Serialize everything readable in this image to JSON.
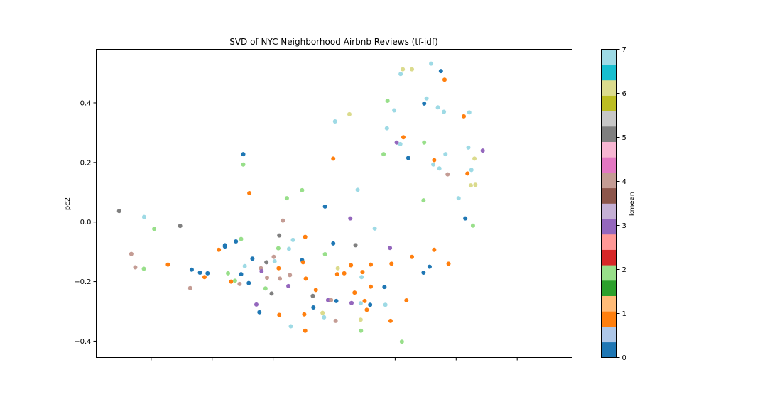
{
  "chart_data": {
    "type": "scatter",
    "title": "SVD of NYC Neighborhood Airbnb Reviews (tf-idf)",
    "xlabel": "",
    "ylabel": "pc2",
    "xlim": [
      -0.78,
      0.78
    ],
    "ylim": [
      -0.455,
      0.58
    ],
    "yticks": [
      -0.4,
      -0.2,
      0.0,
      0.2,
      0.4
    ],
    "ytick_labels": [
      "−0.4",
      "−0.2",
      "0.0",
      "0.2",
      "0.4"
    ],
    "xticks": [
      -0.6,
      -0.4,
      -0.2,
      0.0,
      0.2,
      0.4,
      0.6
    ],
    "grid": false,
    "colorbar": {
      "label": "kmean",
      "min": 0,
      "max": 7,
      "ticks": [
        0,
        1,
        2,
        3,
        4,
        5,
        6,
        7
      ],
      "palette": [
        "#1f77b4",
        "#aec7e8",
        "#ff7f0e",
        "#ffbb78",
        "#2ca02c",
        "#98df8a",
        "#d62728",
        "#ff9896",
        "#9467bd",
        "#c5b0d5",
        "#8c564b",
        "#c49c94",
        "#e377c2",
        "#f7b6d2",
        "#7f7f7f",
        "#c7c7c7",
        "#bcbd22",
        "#dbdb8d",
        "#17becf",
        "#9edae5"
      ]
    },
    "points": [
      {
        "x": -0.705,
        "y": 0.037,
        "kmean": 5.0
      },
      {
        "x": -0.623,
        "y": 0.017,
        "kmean": 7.0
      },
      {
        "x": -0.59,
        "y": -0.023,
        "kmean": 2.0
      },
      {
        "x": -0.505,
        "y": -0.013,
        "kmean": 5.0
      },
      {
        "x": -0.665,
        "y": -0.107,
        "kmean": 4.0
      },
      {
        "x": -0.652,
        "y": -0.152,
        "kmean": 4.0
      },
      {
        "x": -0.624,
        "y": -0.157,
        "kmean": 2.0
      },
      {
        "x": -0.545,
        "y": -0.143,
        "kmean": 1.0
      },
      {
        "x": -0.472,
        "y": -0.222,
        "kmean": 4.0
      },
      {
        "x": -0.467,
        "y": -0.16,
        "kmean": 0.0
      },
      {
        "x": -0.44,
        "y": -0.17,
        "kmean": 0.0
      },
      {
        "x": -0.425,
        "y": -0.185,
        "kmean": 1.0
      },
      {
        "x": -0.415,
        "y": -0.172,
        "kmean": 0.0
      },
      {
        "x": -0.378,
        "y": -0.093,
        "kmean": 1.0
      },
      {
        "x": -0.358,
        "y": -0.082,
        "kmean": 0.0
      },
      {
        "x": -0.358,
        "y": -0.078,
        "kmean": 0.0
      },
      {
        "x": -0.348,
        "y": -0.172,
        "kmean": 2.0
      },
      {
        "x": -0.338,
        "y": -0.2,
        "kmean": 1.0
      },
      {
        "x": -0.325,
        "y": -0.197,
        "kmean": 2.0
      },
      {
        "x": -0.322,
        "y": -0.065,
        "kmean": 0.0
      },
      {
        "x": -0.31,
        "y": -0.208,
        "kmean": 4.0
      },
      {
        "x": -0.305,
        "y": -0.175,
        "kmean": 0.0
      },
      {
        "x": -0.305,
        "y": -0.057,
        "kmean": 2.0
      },
      {
        "x": -0.298,
        "y": 0.228,
        "kmean": 0.0
      },
      {
        "x": -0.298,
        "y": 0.193,
        "kmean": 2.0
      },
      {
        "x": -0.293,
        "y": -0.148,
        "kmean": 7.0
      },
      {
        "x": -0.278,
        "y": 0.097,
        "kmean": 1.0
      },
      {
        "x": -0.28,
        "y": -0.205,
        "kmean": 0.0
      },
      {
        "x": -0.268,
        "y": -0.123,
        "kmean": 0.0
      },
      {
        "x": -0.255,
        "y": -0.277,
        "kmean": 3.0
      },
      {
        "x": -0.245,
        "y": -0.303,
        "kmean": 0.0
      },
      {
        "x": -0.24,
        "y": -0.155,
        "kmean": 4.0
      },
      {
        "x": -0.238,
        "y": -0.165,
        "kmean": 3.0
      },
      {
        "x": -0.225,
        "y": -0.223,
        "kmean": 2.0
      },
      {
        "x": -0.222,
        "y": -0.135,
        "kmean": 5.0
      },
      {
        "x": -0.22,
        "y": -0.187,
        "kmean": 4.0
      },
      {
        "x": -0.205,
        "y": -0.24,
        "kmean": 5.0
      },
      {
        "x": -0.198,
        "y": -0.117,
        "kmean": 4.0
      },
      {
        "x": -0.195,
        "y": -0.132,
        "kmean": 7.0
      },
      {
        "x": -0.183,
        "y": -0.088,
        "kmean": 2.0
      },
      {
        "x": -0.182,
        "y": -0.155,
        "kmean": 1.0
      },
      {
        "x": -0.18,
        "y": -0.312,
        "kmean": 1.0
      },
      {
        "x": -0.18,
        "y": -0.045,
        "kmean": 5.0
      },
      {
        "x": -0.178,
        "y": -0.19,
        "kmean": 4.0
      },
      {
        "x": -0.168,
        "y": 0.005,
        "kmean": 4.0
      },
      {
        "x": -0.155,
        "y": 0.08,
        "kmean": 2.0
      },
      {
        "x": -0.15,
        "y": -0.215,
        "kmean": 3.0
      },
      {
        "x": -0.148,
        "y": -0.09,
        "kmean": 7.0
      },
      {
        "x": -0.145,
        "y": -0.178,
        "kmean": 4.0
      },
      {
        "x": -0.142,
        "y": -0.35,
        "kmean": 7.0
      },
      {
        "x": -0.135,
        "y": -0.06,
        "kmean": 7.0
      },
      {
        "x": -0.105,
        "y": 0.107,
        "kmean": 2.0
      },
      {
        "x": -0.105,
        "y": -0.128,
        "kmean": 0.0
      },
      {
        "x": -0.102,
        "y": -0.135,
        "kmean": 1.0
      },
      {
        "x": -0.098,
        "y": -0.31,
        "kmean": 1.0
      },
      {
        "x": -0.095,
        "y": -0.365,
        "kmean": 1.0
      },
      {
        "x": -0.095,
        "y": -0.05,
        "kmean": 1.0
      },
      {
        "x": -0.093,
        "y": -0.19,
        "kmean": 1.0
      },
      {
        "x": -0.07,
        "y": -0.248,
        "kmean": 5.0
      },
      {
        "x": -0.068,
        "y": -0.287,
        "kmean": 0.0
      },
      {
        "x": -0.06,
        "y": -0.228,
        "kmean": 1.0
      },
      {
        "x": -0.038,
        "y": -0.305,
        "kmean": 6.0
      },
      {
        "x": -0.033,
        "y": -0.32,
        "kmean": 7.0
      },
      {
        "x": -0.03,
        "y": 0.052,
        "kmean": 0.0
      },
      {
        "x": -0.03,
        "y": -0.108,
        "kmean": 2.0
      },
      {
        "x": -0.02,
        "y": -0.262,
        "kmean": 3.0
      },
      {
        "x": -0.01,
        "y": -0.262,
        "kmean": 4.0
      },
      {
        "x": -0.003,
        "y": 0.213,
        "kmean": 1.0
      },
      {
        "x": -0.003,
        "y": -0.072,
        "kmean": 0.0
      },
      {
        "x": 0.003,
        "y": 0.338,
        "kmean": 7.0
      },
      {
        "x": 0.005,
        "y": -0.332,
        "kmean": 4.0
      },
      {
        "x": 0.007,
        "y": -0.265,
        "kmean": 0.0
      },
      {
        "x": 0.01,
        "y": -0.175,
        "kmean": 1.0
      },
      {
        "x": 0.012,
        "y": -0.155,
        "kmean": 6.0
      },
      {
        "x": 0.033,
        "y": -0.172,
        "kmean": 1.0
      },
      {
        "x": 0.05,
        "y": 0.362,
        "kmean": 6.0
      },
      {
        "x": 0.053,
        "y": 0.012,
        "kmean": 3.0
      },
      {
        "x": 0.055,
        "y": -0.145,
        "kmean": 1.0
      },
      {
        "x": 0.057,
        "y": -0.272,
        "kmean": 3.0
      },
      {
        "x": 0.067,
        "y": -0.237,
        "kmean": 1.0
      },
      {
        "x": 0.07,
        "y": -0.078,
        "kmean": 5.0
      },
      {
        "x": 0.077,
        "y": 0.108,
        "kmean": 7.0
      },
      {
        "x": 0.087,
        "y": -0.273,
        "kmean": 7.0
      },
      {
        "x": 0.087,
        "y": -0.328,
        "kmean": 6.0
      },
      {
        "x": 0.088,
        "y": -0.365,
        "kmean": 2.0
      },
      {
        "x": 0.09,
        "y": -0.185,
        "kmean": 7.0
      },
      {
        "x": 0.093,
        "y": -0.168,
        "kmean": 1.0
      },
      {
        "x": 0.1,
        "y": -0.265,
        "kmean": 1.0
      },
      {
        "x": 0.107,
        "y": -0.295,
        "kmean": 1.0
      },
      {
        "x": 0.118,
        "y": -0.278,
        "kmean": 0.0
      },
      {
        "x": 0.12,
        "y": -0.217,
        "kmean": 1.0
      },
      {
        "x": 0.12,
        "y": -0.143,
        "kmean": 1.0
      },
      {
        "x": 0.133,
        "y": -0.022,
        "kmean": 7.0
      },
      {
        "x": 0.162,
        "y": 0.228,
        "kmean": 2.0
      },
      {
        "x": 0.165,
        "y": -0.218,
        "kmean": 0.0
      },
      {
        "x": 0.168,
        "y": -0.278,
        "kmean": 7.0
      },
      {
        "x": 0.173,
        "y": 0.315,
        "kmean": 7.0
      },
      {
        "x": 0.175,
        "y": 0.407,
        "kmean": 2.0
      },
      {
        "x": 0.183,
        "y": -0.087,
        "kmean": 3.0
      },
      {
        "x": 0.185,
        "y": -0.332,
        "kmean": 1.0
      },
      {
        "x": 0.188,
        "y": -0.14,
        "kmean": 1.0
      },
      {
        "x": 0.197,
        "y": 0.375,
        "kmean": 7.0
      },
      {
        "x": 0.205,
        "y": 0.267,
        "kmean": 3.0
      },
      {
        "x": 0.217,
        "y": 0.262,
        "kmean": 7.0
      },
      {
        "x": 0.218,
        "y": 0.497,
        "kmean": 7.0
      },
      {
        "x": 0.222,
        "y": -0.402,
        "kmean": 2.0
      },
      {
        "x": 0.225,
        "y": 0.513,
        "kmean": 6.0
      },
      {
        "x": 0.227,
        "y": 0.285,
        "kmean": 1.0
      },
      {
        "x": 0.237,
        "y": -0.263,
        "kmean": 1.0
      },
      {
        "x": 0.243,
        "y": 0.215,
        "kmean": 0.0
      },
      {
        "x": 0.255,
        "y": 0.513,
        "kmean": 6.0
      },
      {
        "x": 0.255,
        "y": -0.117,
        "kmean": 1.0
      },
      {
        "x": 0.293,
        "y": -0.17,
        "kmean": 0.0
      },
      {
        "x": 0.293,
        "y": 0.073,
        "kmean": 2.0
      },
      {
        "x": 0.295,
        "y": 0.267,
        "kmean": 2.0
      },
      {
        "x": 0.295,
        "y": 0.398,
        "kmean": 0.0
      },
      {
        "x": 0.303,
        "y": 0.415,
        "kmean": 7.0
      },
      {
        "x": 0.313,
        "y": -0.15,
        "kmean": 0.0
      },
      {
        "x": 0.318,
        "y": 0.532,
        "kmean": 7.0
      },
      {
        "x": 0.325,
        "y": 0.193,
        "kmean": 7.0
      },
      {
        "x": 0.328,
        "y": 0.208,
        "kmean": 1.0
      },
      {
        "x": 0.328,
        "y": -0.093,
        "kmean": 1.0
      },
      {
        "x": 0.34,
        "y": 0.385,
        "kmean": 7.0
      },
      {
        "x": 0.345,
        "y": 0.18,
        "kmean": 7.0
      },
      {
        "x": 0.35,
        "y": 0.507,
        "kmean": 0.0
      },
      {
        "x": 0.36,
        "y": 0.37,
        "kmean": 7.0
      },
      {
        "x": 0.362,
        "y": 0.478,
        "kmean": 1.0
      },
      {
        "x": 0.365,
        "y": 0.228,
        "kmean": 7.0
      },
      {
        "x": 0.372,
        "y": 0.16,
        "kmean": 4.0
      },
      {
        "x": 0.375,
        "y": -0.14,
        "kmean": 1.0
      },
      {
        "x": 0.408,
        "y": 0.08,
        "kmean": 7.0
      },
      {
        "x": 0.425,
        "y": 0.355,
        "kmean": 1.0
      },
      {
        "x": 0.43,
        "y": 0.012,
        "kmean": 0.0
      },
      {
        "x": 0.437,
        "y": 0.163,
        "kmean": 1.0
      },
      {
        "x": 0.44,
        "y": 0.25,
        "kmean": 7.0
      },
      {
        "x": 0.443,
        "y": 0.368,
        "kmean": 7.0
      },
      {
        "x": 0.448,
        "y": 0.123,
        "kmean": 6.0
      },
      {
        "x": 0.45,
        "y": 0.175,
        "kmean": 7.0
      },
      {
        "x": 0.455,
        "y": -0.012,
        "kmean": 2.0
      },
      {
        "x": 0.46,
        "y": 0.213,
        "kmean": 6.0
      },
      {
        "x": 0.463,
        "y": 0.125,
        "kmean": 6.0
      },
      {
        "x": 0.487,
        "y": 0.24,
        "kmean": 3.0
      }
    ]
  }
}
